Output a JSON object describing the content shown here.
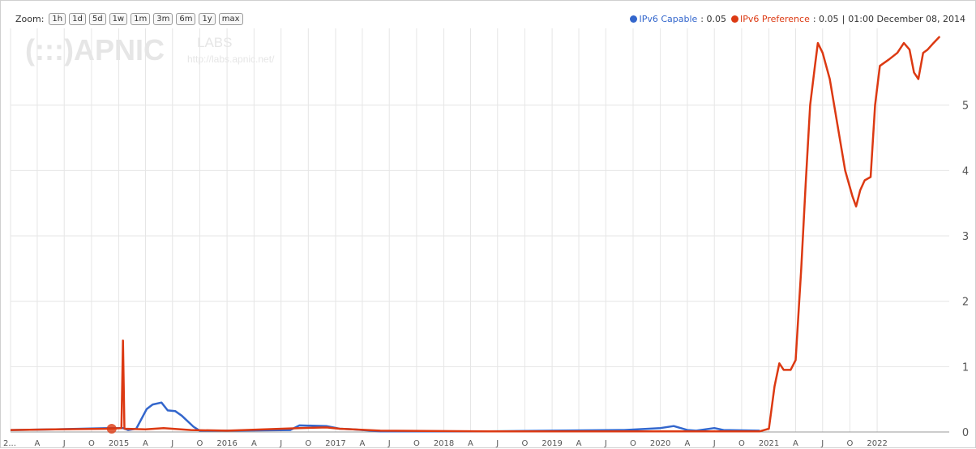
{
  "zoom": {
    "label": "Zoom:",
    "buttons": [
      "1h",
      "1d",
      "5d",
      "1w",
      "1m",
      "3m",
      "6m",
      "1y",
      "max"
    ]
  },
  "legend": {
    "items": [
      {
        "name": "IPv6 Capable",
        "value": ": 0.05",
        "color": "#3366cc"
      },
      {
        "name": "IPv6 Preference",
        "value": ": 0.05",
        "color": "#dc3912"
      }
    ],
    "separator": "|",
    "timestamp": "01:00 December 08, 2014"
  },
  "watermark": {
    "logo": "(:::)APNIC",
    "sub": "LABS",
    "url": "http://labs.apnic.net/"
  },
  "chart_data": {
    "type": "line",
    "title": "",
    "xlabel": "",
    "ylabel": "",
    "ylim": [
      0,
      6.1
    ],
    "y_ticks": [
      "0",
      "1",
      "2",
      "3",
      "4",
      "5"
    ],
    "x_tick_labels": [
      "2...",
      "A",
      "J",
      "O",
      "2015",
      "A",
      "J",
      "O",
      "2016",
      "A",
      "J",
      "O",
      "2017",
      "A",
      "J",
      "O",
      "2018",
      "A",
      "J",
      "O",
      "2019",
      "A",
      "J",
      "O",
      "2020",
      "A",
      "J",
      "O",
      "2021",
      "A",
      "J",
      "O",
      "2022"
    ],
    "grid": true,
    "legend_position": "top-right",
    "marker": {
      "x": "2014-12-08",
      "y": 0.05
    },
    "series": [
      {
        "name": "IPv6 Capable",
        "color": "#3366cc",
        "points": [
          [
            "2014-01-01",
            0.03
          ],
          [
            "2014-06-01",
            0.04
          ],
          [
            "2014-12-01",
            0.06
          ],
          [
            "2015-01-15",
            0.06
          ],
          [
            "2015-02-01",
            0.03
          ],
          [
            "2015-03-01",
            0.05
          ],
          [
            "2015-04-05",
            0.35
          ],
          [
            "2015-04-25",
            0.42
          ],
          [
            "2015-05-25",
            0.45
          ],
          [
            "2015-06-15",
            0.33
          ],
          [
            "2015-07-10",
            0.32
          ],
          [
            "2015-08-01",
            0.25
          ],
          [
            "2015-09-10",
            0.08
          ],
          [
            "2015-10-01",
            0.02
          ],
          [
            "2016-01-01",
            0.02
          ],
          [
            "2016-08-01",
            0.03
          ],
          [
            "2016-09-01",
            0.1
          ],
          [
            "2016-12-01",
            0.09
          ],
          [
            "2017-01-15",
            0.05
          ],
          [
            "2017-03-01",
            0.04
          ],
          [
            "2017-06-01",
            0.01
          ],
          [
            "2018-06-01",
            0.01
          ],
          [
            "2019-01-01",
            0.02
          ],
          [
            "2019-09-01",
            0.03
          ],
          [
            "2020-01-01",
            0.06
          ],
          [
            "2020-02-15",
            0.09
          ],
          [
            "2020-04-01",
            0.03
          ],
          [
            "2020-05-01",
            0.02
          ],
          [
            "2020-07-01",
            0.06
          ],
          [
            "2020-08-01",
            0.03
          ],
          [
            "2020-12-01",
            0.02
          ]
        ]
      },
      {
        "name": "IPv6 Preference",
        "color": "#dc3912",
        "points": [
          [
            "2014-01-01",
            0.03
          ],
          [
            "2014-06-01",
            0.04
          ],
          [
            "2014-12-01",
            0.05
          ],
          [
            "2015-01-10",
            0.06
          ],
          [
            "2015-01-15",
            1.4
          ],
          [
            "2015-01-20",
            0.05
          ],
          [
            "2015-04-01",
            0.04
          ],
          [
            "2015-06-01",
            0.06
          ],
          [
            "2015-09-01",
            0.03
          ],
          [
            "2016-01-01",
            0.02
          ],
          [
            "2016-09-01",
            0.06
          ],
          [
            "2016-12-01",
            0.07
          ],
          [
            "2017-01-15",
            0.05
          ],
          [
            "2017-06-01",
            0.02
          ],
          [
            "2018-06-01",
            0.01
          ],
          [
            "2020-12-01",
            0.01
          ],
          [
            "2021-01-01",
            0.05
          ],
          [
            "2021-01-20",
            0.7
          ],
          [
            "2021-02-05",
            1.05
          ],
          [
            "2021-02-20",
            0.95
          ],
          [
            "2021-03-15",
            0.95
          ],
          [
            "2021-04-01",
            1.1
          ],
          [
            "2021-04-20",
            2.5
          ],
          [
            "2021-05-05",
            3.8
          ],
          [
            "2021-05-20",
            5.0
          ],
          [
            "2021-06-05",
            5.6
          ],
          [
            "2021-06-15",
            5.95
          ],
          [
            "2021-07-01",
            5.8
          ],
          [
            "2021-07-25",
            5.4
          ],
          [
            "2021-08-20",
            4.7
          ],
          [
            "2021-09-15",
            4.0
          ],
          [
            "2021-10-10",
            3.6
          ],
          [
            "2021-10-22",
            3.45
          ],
          [
            "2021-11-05",
            3.7
          ],
          [
            "2021-11-20",
            3.85
          ],
          [
            "2021-12-10",
            3.9
          ],
          [
            "2021-12-25",
            5.0
          ],
          [
            "2022-01-10",
            5.6
          ],
          [
            "2022-02-10",
            5.7
          ],
          [
            "2022-03-10",
            5.8
          ],
          [
            "2022-04-01",
            5.95
          ],
          [
            "2022-04-20",
            5.85
          ],
          [
            "2022-05-05",
            5.5
          ],
          [
            "2022-05-20",
            5.4
          ],
          [
            "2022-06-05",
            5.8
          ],
          [
            "2022-06-20",
            5.85
          ],
          [
            "2022-07-10",
            5.95
          ],
          [
            "2022-07-31",
            6.05
          ]
        ]
      }
    ]
  }
}
